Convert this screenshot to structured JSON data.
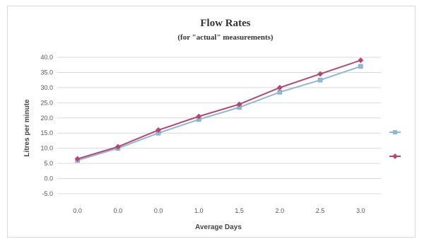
{
  "chart_data": {
    "type": "line",
    "title": "Flow Rates",
    "subtitle": "(for \"actual\" measurements)",
    "xlabel": "Average Days",
    "ylabel": "Litres per minute",
    "categories": [
      "0.0",
      "0.0",
      "0.0",
      "1.0",
      "1.5",
      "2.0",
      "2.5",
      "3.0"
    ],
    "ylim": [
      -5.0,
      40.0
    ],
    "yticks": [
      "-5.0",
      "0.0",
      "5.0",
      "10.0",
      "15.0",
      "20.0",
      "25.0",
      "30.0",
      "35.0",
      "40.0"
    ],
    "grid": true,
    "legend_position": "right",
    "series": [
      {
        "name": "",
        "color": "#8fb8d8",
        "values": [
          6.0,
          10.0,
          15.0,
          19.5,
          23.5,
          28.5,
          32.5,
          37.0
        ]
      },
      {
        "name": "",
        "color": "#b5476d",
        "values": [
          6.5,
          10.5,
          16.0,
          20.5,
          24.5,
          30.0,
          34.5,
          39.0
        ]
      }
    ]
  }
}
